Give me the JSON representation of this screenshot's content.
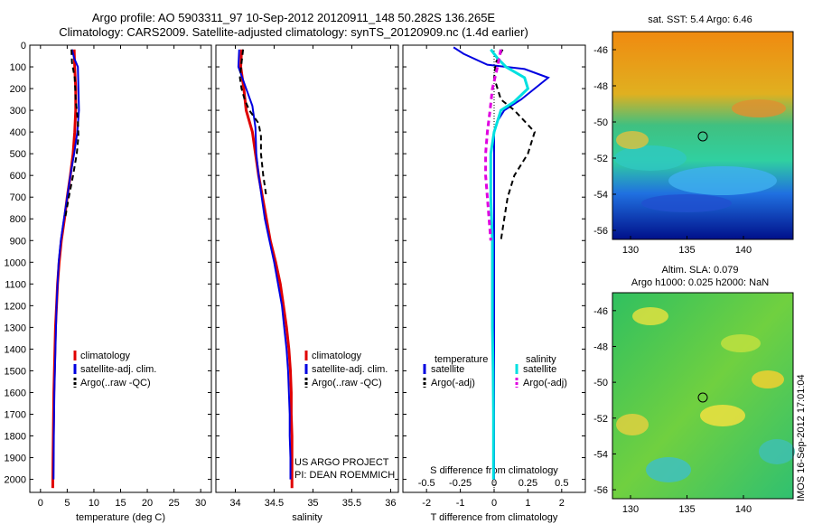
{
  "title_line1": "Argo profile: AO 5903311_97 10-Sep-2012 20120911_148 50.282S 136.265E",
  "title_line2": "Climatology: CARS2009. Satellite-adjusted climatology: synTS_20120909.nc (1.4d earlier)",
  "colors": {
    "climatology": "#e00000",
    "satellite": "#0000e0",
    "argo": "#000000",
    "sat_salinity": "#00e0e0",
    "argo_salinity_diff": "#e000e0"
  },
  "chart_data": [
    {
      "type": "line",
      "xlabel": "temperature (deg C)",
      "xlim": [
        -2,
        32
      ],
      "xticks": [
        "0",
        "5",
        "10",
        "15",
        "20",
        "25",
        "30"
      ],
      "ylim": [
        2060,
        0
      ],
      "yticks": [
        "0",
        "100",
        "200",
        "300",
        "400",
        "500",
        "600",
        "700",
        "800",
        "900",
        "1000",
        "1100",
        "1200",
        "1300",
        "1400",
        "1500",
        "1600",
        "1700",
        "1800",
        "1900",
        "2000"
      ],
      "legend": [
        "climatology",
        "satellite-adj. clim.",
        "Argo(..raw -QC)"
      ],
      "series": [
        {
          "name": "climatology",
          "x": [
            6.3,
            6.4,
            6.6,
            6.6,
            6.4,
            6.1,
            5.6,
            5.0,
            4.5,
            3.9,
            3.5,
            3.2,
            3.0,
            2.8,
            2.7,
            2.6,
            2.5,
            2.45,
            2.4,
            2.35,
            2.3
          ],
          "y": [
            20,
            100,
            200,
            300,
            400,
            500,
            600,
            700,
            800,
            900,
            1000,
            1100,
            1200,
            1300,
            1400,
            1500,
            1600,
            1700,
            1800,
            1900,
            2040
          ]
        },
        {
          "name": "satellite-adj. clim.",
          "x": [
            5.9,
            6.3,
            7.0,
            7.1,
            7.2,
            6.9,
            6.3,
            5.6,
            5.0,
            4.4,
            3.8,
            3.4,
            3.2,
            3.0,
            2.9,
            2.8,
            2.7,
            2.6,
            2.55,
            2.5,
            2.45
          ],
          "y": [
            20,
            60,
            100,
            200,
            300,
            400,
            500,
            600,
            700,
            800,
            900,
            1000,
            1100,
            1200,
            1300,
            1400,
            1500,
            1600,
            1700,
            1800,
            2000
          ]
        },
        {
          "name": "Argo(..raw -QC)",
          "x": [
            5.8,
            5.9,
            6.4,
            6.6,
            7.0,
            7.1,
            6.8,
            6.1,
            5.3,
            4.6
          ],
          "y": [
            20,
            80,
            150,
            250,
            350,
            420,
            500,
            600,
            700,
            800
          ]
        }
      ],
      "annotations": []
    },
    {
      "type": "line",
      "xlabel": "salinity",
      "xlim": [
        33.75,
        36.1
      ],
      "xticks": [
        "34",
        "34.5",
        "35",
        "35.5",
        "36"
      ],
      "ylim": [
        2060,
        0
      ],
      "legend": [
        "climatology",
        "satellite-adj. clim.",
        "Argo(..raw -QC)"
      ],
      "series": [
        {
          "name": "climatology",
          "x": [
            34.08,
            34.07,
            34.11,
            34.14,
            34.22,
            34.26,
            34.3,
            34.35,
            34.4,
            34.45,
            34.52,
            34.58,
            34.62,
            34.66,
            34.69,
            34.71,
            34.72,
            34.72,
            34.73,
            34.73,
            34.73
          ],
          "y": [
            20,
            100,
            200,
            300,
            400,
            500,
            600,
            700,
            800,
            900,
            1000,
            1100,
            1200,
            1300,
            1400,
            1500,
            1600,
            1700,
            1800,
            1900,
            2040
          ]
        },
        {
          "name": "satellite-adj. clim.",
          "x": [
            34.05,
            34.04,
            34.12,
            34.22,
            34.26,
            34.27,
            34.3,
            34.34,
            34.38,
            34.44,
            34.5,
            34.55,
            34.6,
            34.63,
            34.66,
            34.68,
            34.69,
            34.7,
            34.7,
            34.71,
            34.71
          ],
          "y": [
            20,
            100,
            180,
            280,
            380,
            500,
            600,
            700,
            800,
            900,
            1000,
            1100,
            1200,
            1300,
            1400,
            1500,
            1600,
            1700,
            1800,
            1900,
            2000
          ]
        },
        {
          "name": "Argo(..raw -QC)",
          "x": [
            34.1,
            34.08,
            34.06,
            34.08,
            34.12,
            34.18,
            34.3,
            34.33,
            34.33,
            34.36,
            34.4
          ],
          "y": [
            20,
            80,
            150,
            200,
            250,
            300,
            360,
            420,
            500,
            600,
            700
          ]
        }
      ],
      "annotations": [
        "US ARGO PROJECT",
        "PI: DEAN ROEMMICH"
      ]
    },
    {
      "type": "line",
      "xlabel": "T difference from climatology",
      "xlabel_top": "S difference from climatology",
      "xlim": [
        -2.7,
        2.7
      ],
      "xticks": [
        "-2",
        "-1",
        "0",
        "1",
        "2"
      ],
      "xticks_top": [
        "-0.5",
        "-0.25",
        "0",
        "0.25",
        "0.5"
      ],
      "ylim": [
        2060,
        0
      ],
      "legend_title_left": "temperature",
      "legend_title_right": "salinity",
      "legend": [
        "satellite",
        "Argo(-adj)",
        "satellite",
        "Argo(-adj)"
      ],
      "series": [
        {
          "name": "satellite",
          "x": [
            -1.2,
            -0.9,
            -0.2,
            0.9,
            1.6,
            0.8,
            0.3,
            0.1,
            0.0,
            0.0,
            0.0,
            0.0,
            0.0,
            0.0,
            0.0,
            0.0,
            0.0,
            0.0,
            0.0,
            0.0,
            0.0
          ],
          "y": [
            10,
            40,
            90,
            110,
            150,
            250,
            300,
            350,
            400,
            500,
            600,
            700,
            800,
            1000,
            1200,
            1400,
            1500,
            1600,
            1800,
            1900,
            2000
          ]
        },
        {
          "name": "Argo(-adj)",
          "x": [
            0.25,
            0.05,
            0.0,
            0.2,
            0.6,
            1.2,
            1.0,
            0.6,
            0.4,
            0.3,
            0.2
          ],
          "y": [
            20,
            80,
            150,
            250,
            300,
            400,
            500,
            600,
            700,
            800,
            900
          ]
        },
        {
          "name": "satellite",
          "x": [
            -0.1,
            0.1,
            0.35,
            0.9,
            1.0,
            0.6,
            0.2,
            0.0,
            -0.1,
            -0.1,
            -0.05,
            -0.05,
            -0.05,
            -0.03,
            -0.02,
            -0.02,
            -0.02
          ],
          "y": [
            20,
            60,
            100,
            150,
            200,
            260,
            300,
            400,
            500,
            700,
            900,
            1100,
            1300,
            1500,
            1700,
            1900,
            2000
          ]
        },
        {
          "name": "Argo(-adj)",
          "x": [
            0.2,
            0.1,
            -0.05,
            -0.12,
            -0.2,
            -0.25,
            -0.25,
            -0.2,
            -0.15,
            -0.1
          ],
          "y": [
            20,
            100,
            200,
            300,
            400,
            500,
            600,
            700,
            800,
            900
          ]
        }
      ]
    }
  ],
  "maps": [
    {
      "title": "sat. SST: 5.4 Argo: 6.46",
      "yticks": [
        "-46",
        "-48",
        "-50",
        "-52",
        "-54",
        "-56"
      ],
      "xticks": [
        "130",
        "135",
        "140"
      ],
      "marker": [
        136.27,
        -50.28
      ]
    },
    {
      "title": "Altim. SLA: 0.079",
      "subtitle": "Argo h1000: 0.025 h2000: NaN",
      "yticks": [
        "-46",
        "-48",
        "-50",
        "-52",
        "-54",
        "-56"
      ],
      "xticks": [
        "130",
        "135",
        "140"
      ],
      "marker": [
        136.27,
        -50.28
      ]
    }
  ],
  "watermark": "IMOS 16-Sep-2012 17:01:04"
}
